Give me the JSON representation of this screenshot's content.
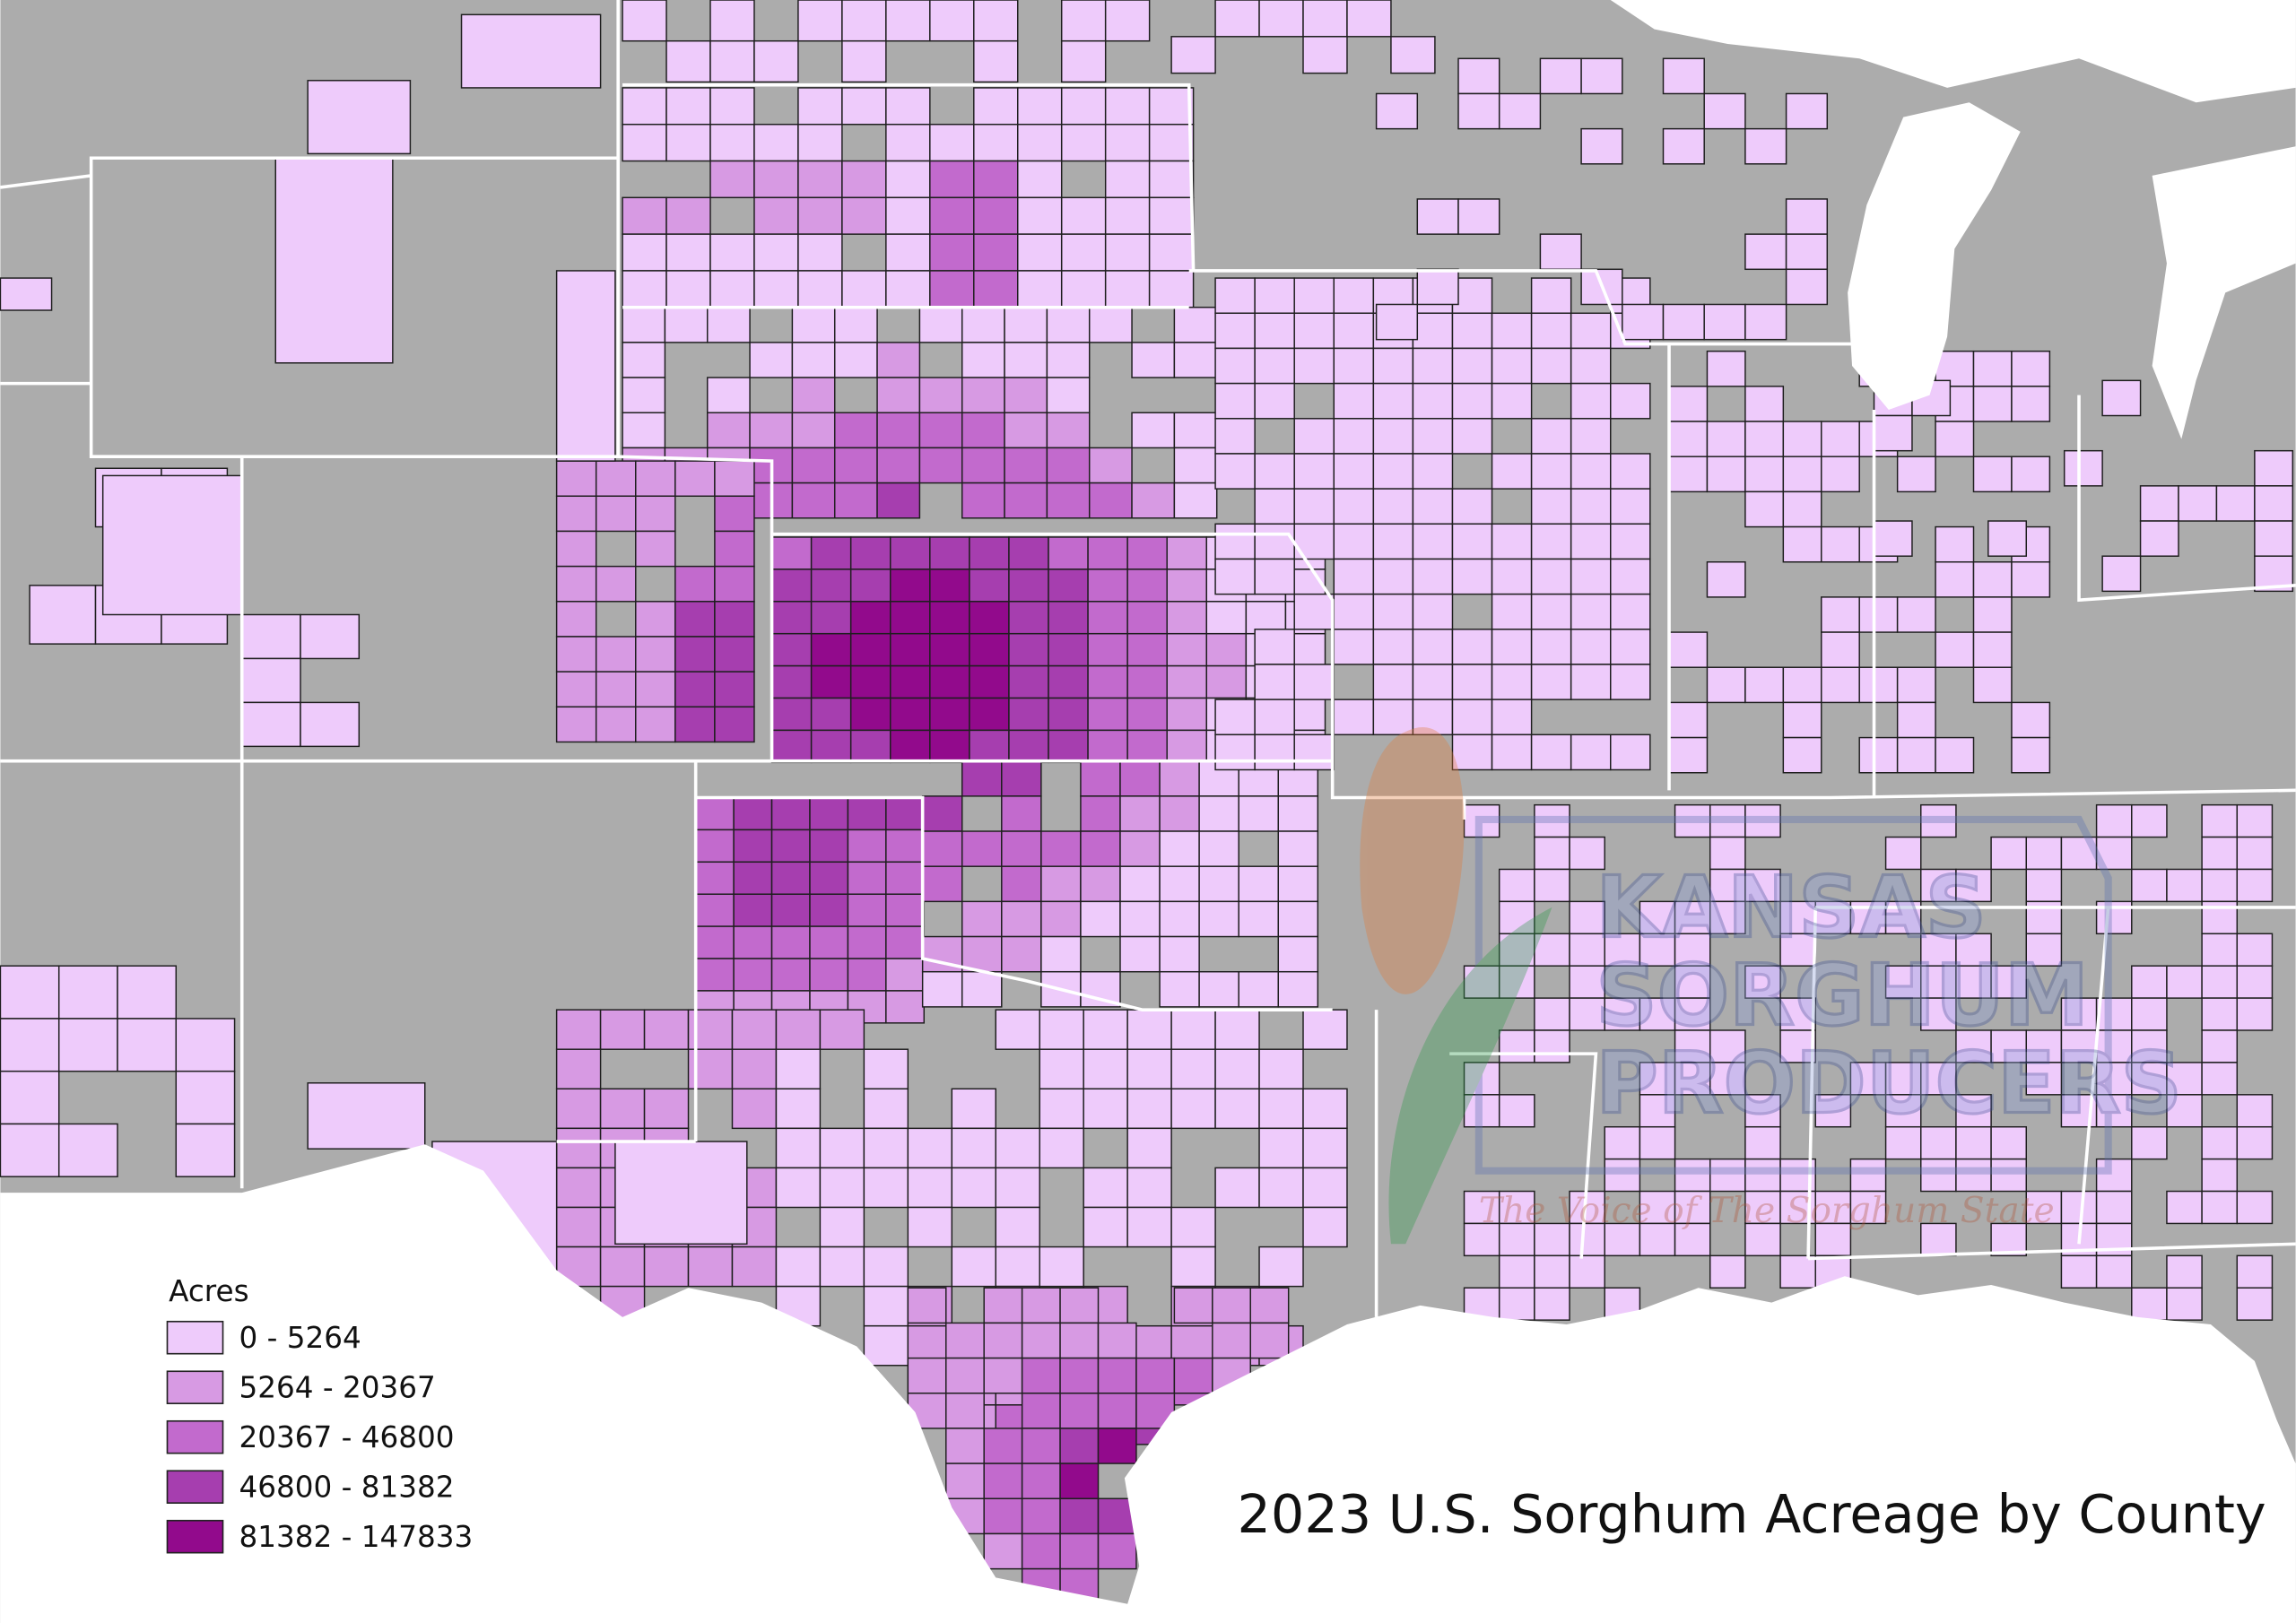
{
  "title": "2023 U.S. Sorghum Acreage by County",
  "legend": {
    "title": "Acres",
    "items": [
      {
        "label": "0 - 5264",
        "color": "#eecbfb"
      },
      {
        "label": "5264 - 20367",
        "color": "#d79ae3"
      },
      {
        "label": "20367 - 46800",
        "color": "#c26acd"
      },
      {
        "label": "46800 - 81382",
        "color": "#a63eaf"
      },
      {
        "label": "81382 - 147833",
        "color": "#920a8c"
      }
    ]
  },
  "watermark": {
    "lines": [
      "KANSAS",
      "SORGHUM",
      "PRODUCERS"
    ],
    "tagline": "The Voice of The Sorghum State"
  }
}
